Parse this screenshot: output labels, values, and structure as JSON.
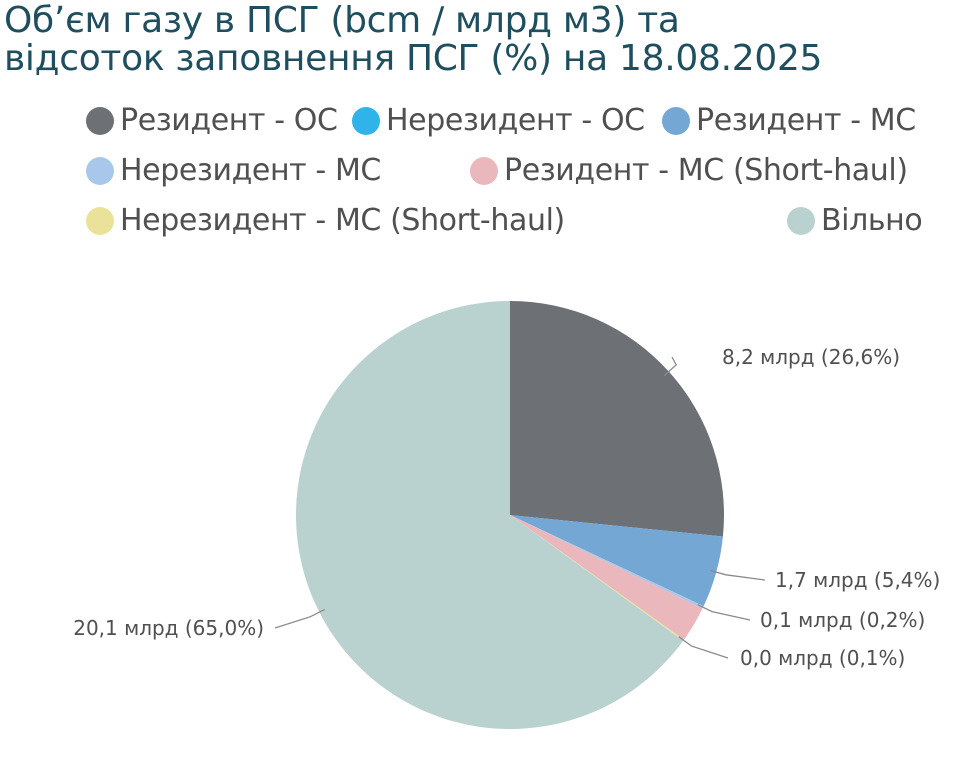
{
  "chart_data": {
    "type": "pie",
    "title_lines": [
      "Об’єм газу в ПСГ (bcm / млрд м3) та",
      "відсоток заповнення ПСГ (%) на 18.08.2025"
    ],
    "slices": [
      {
        "name": "Резидент - ОС",
        "percent": 26.6,
        "label": "8,2 млрд (26,6%)",
        "color": "#6d7074"
      },
      {
        "name": "Нерезидент - ОС",
        "percent": 0,
        "label": "",
        "color": "#2fb3e8"
      },
      {
        "name": "Резидент - МС",
        "percent": 5.4,
        "label": "1,7 млрд (5,4%)",
        "color": "#74a7d4"
      },
      {
        "name": "Нерезидент - МС",
        "percent": 0.2,
        "label": "0,1 млрд (0,2%)",
        "color": "#a7c8ea"
      },
      {
        "name": "Резидент -  МС (Short-haul)",
        "percent": 2.7,
        "label": "",
        "color": "#eab7bd"
      },
      {
        "name": "Нерезидент -  МС (Short-haul)",
        "percent": 0.1,
        "label": "0,0 млрд (0,1%)",
        "color": "#ebe29a"
      },
      {
        "name": "Вільно",
        "percent": 65.0,
        "label": "20,1 млрд (65,0%)",
        "color": "#b9d2cf"
      }
    ],
    "legend_position": "top"
  }
}
